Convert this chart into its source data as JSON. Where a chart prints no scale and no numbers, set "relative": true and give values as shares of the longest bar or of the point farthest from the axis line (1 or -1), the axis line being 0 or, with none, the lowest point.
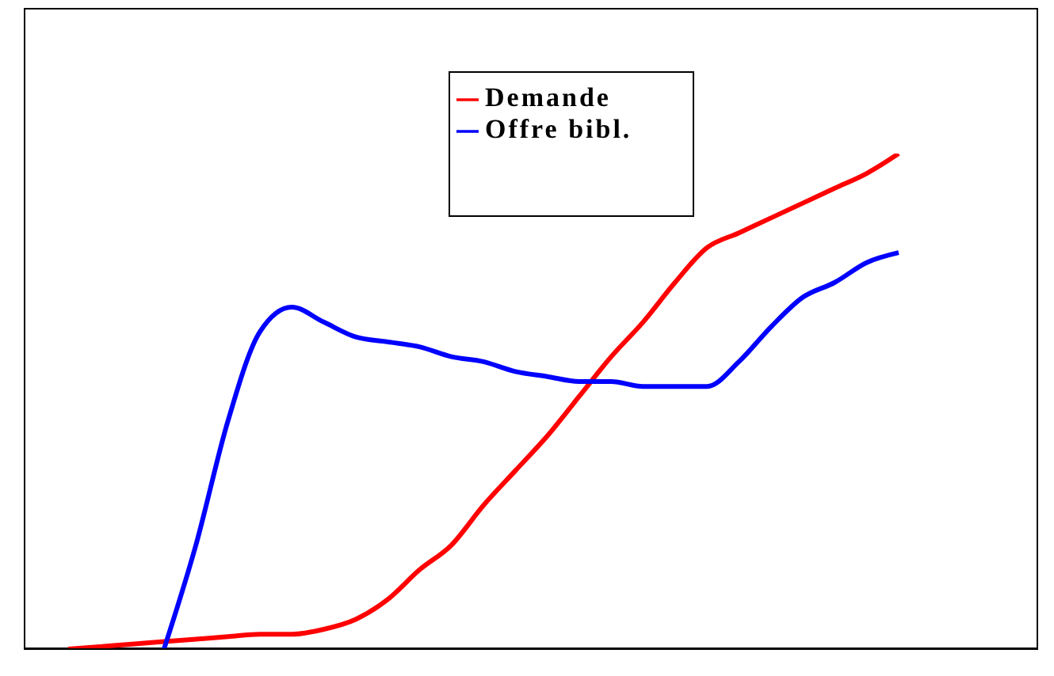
{
  "chart_data": {
    "type": "line",
    "relative": true,
    "legend": "top",
    "marker": "none",
    "line_style": "solid",
    "categories": [
      null,
      null,
      null,
      null,
      null,
      null,
      null,
      null,
      null,
      null,
      null,
      null,
      null,
      null,
      null,
      null,
      null,
      null,
      null,
      null,
      null,
      null,
      null,
      null,
      null,
      null,
      null
    ],
    "series": [
      {
        "name": "Demande",
        "color": "#ff0000",
        "values": [
          0,
          0.005,
          0.01,
          0.015,
          0.02,
          0.025,
          0.03,
          0.03,
          0.04,
          0.06,
          0.1,
          0.16,
          0.21,
          0.29,
          0.36,
          0.43,
          0.51,
          0.59,
          0.66,
          0.74,
          0.81,
          0.84,
          0.87,
          0.9,
          0.93,
          0.96,
          1.0
        ]
      },
      {
        "name": "Offre bibl.",
        "color": "#0000ff",
        "values": [
          null,
          null,
          null,
          0,
          0.21,
          0.46,
          0.64,
          0.69,
          0.66,
          0.63,
          0.62,
          0.61,
          0.59,
          0.58,
          0.56,
          0.55,
          0.54,
          0.54,
          0.53,
          0.53,
          0.53,
          0.58,
          0.65,
          0.71,
          0.74,
          0.78,
          0.8
        ]
      }
    ]
  }
}
